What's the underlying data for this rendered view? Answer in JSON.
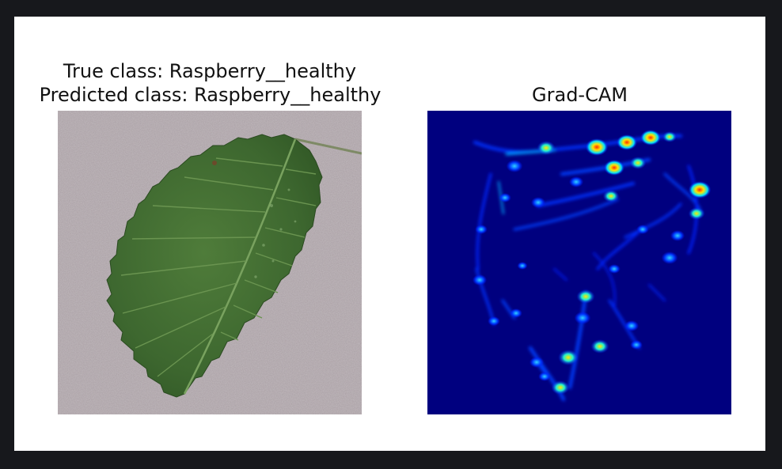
{
  "figure": {
    "left_title_line1": "True class: Raspberry__healthy",
    "left_title_line2": "Predicted class: Raspberry__healthy",
    "right_title": "Grad-CAM"
  },
  "colors": {
    "frame_bg": "#17181c",
    "figure_bg": "#ffffff",
    "stone_bg": "#a99fa4",
    "leaf_green": "#3f6a30",
    "leaf_vein": "#6f9a58",
    "cam_bg": "#00007f",
    "cam_low": "#0014ff",
    "cam_mid": "#00d4ff",
    "cam_high": "#ffe800",
    "cam_peak": "#ff3a00"
  }
}
